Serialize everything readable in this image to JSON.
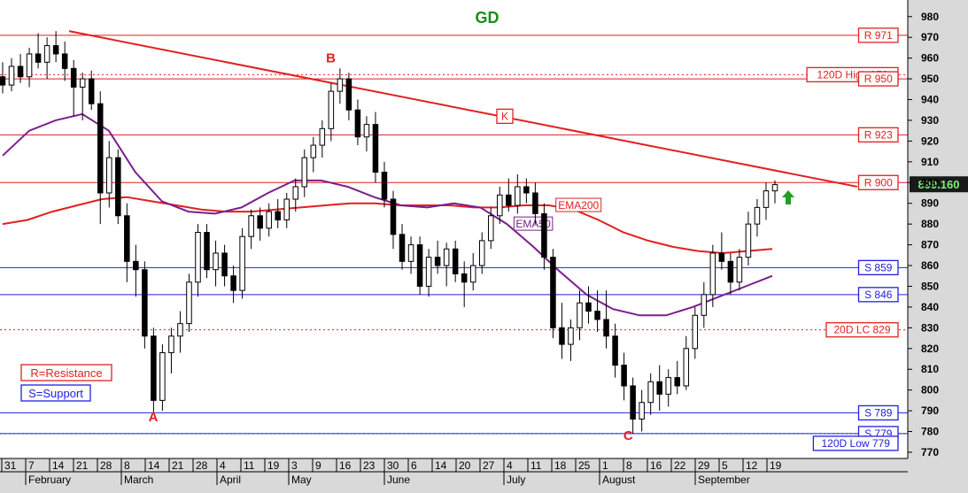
{
  "chart_data": {
    "type": "candlestick",
    "title": "GD",
    "ylim": [
      767,
      988
    ],
    "y_ticks": [
      980,
      970,
      960,
      950,
      940,
      930,
      920,
      910,
      900,
      890,
      880,
      870,
      860,
      850,
      840,
      830,
      820,
      810,
      800,
      790,
      780,
      770
    ],
    "day_ticks": [
      "31",
      "7",
      "14",
      "21",
      "28",
      "8",
      "14",
      "21",
      "28",
      "4",
      "11",
      "19",
      "3",
      "9",
      "16",
      "23",
      "30",
      "6",
      "14",
      "20",
      "27",
      "4",
      "11",
      "18",
      "25",
      "1",
      "8",
      "16",
      "22",
      "29",
      "5",
      "12",
      "19"
    ],
    "month_ticks": [
      "February",
      "March",
      "April",
      "May",
      "June",
      "July",
      "August",
      "September"
    ],
    "last_price": "899.160",
    "horizontal_levels": [
      {
        "value": 971,
        "label": "R 971",
        "kind": "resistance"
      },
      {
        "value": 952,
        "label": "120D High 952",
        "kind": "resistance"
      },
      {
        "value": 950,
        "label": "R 950",
        "kind": "resistance"
      },
      {
        "value": 923,
        "label": "R 923",
        "kind": "resistance"
      },
      {
        "value": 900,
        "label": "R 900",
        "kind": "resistance"
      },
      {
        "value": 859,
        "label": "S 859",
        "kind": "support"
      },
      {
        "value": 846,
        "label": "S 846",
        "kind": "support"
      },
      {
        "value": 829,
        "label": "20D LC 829",
        "kind": "resistance"
      },
      {
        "value": 789,
        "label": "S 789",
        "kind": "support"
      },
      {
        "value": 779,
        "label": "S 779",
        "kind": "support"
      },
      {
        "value": 779,
        "label": "120D Low 779",
        "kind": "support"
      }
    ],
    "trendline": {
      "label": "K",
      "start": [
        0.0,
        973
      ],
      "end": [
        1.0,
        898
      ]
    },
    "series": [
      {
        "name": "EMA200",
        "kind": "ema200",
        "values": [
          880,
          882,
          886,
          889,
          892,
          893,
          891,
          889,
          887,
          886,
          886,
          887,
          888,
          889,
          890,
          890,
          889,
          889,
          889,
          888,
          888,
          889,
          889,
          887,
          882,
          876,
          872,
          869,
          867,
          866,
          867,
          868
        ]
      },
      {
        "name": "EMA50",
        "kind": "ema50",
        "values": [
          913,
          925,
          930,
          933,
          925,
          905,
          891,
          886,
          885,
          888,
          895,
          901,
          901,
          898,
          893,
          889,
          888,
          890,
          888,
          880,
          869,
          857,
          846,
          839,
          836,
          836,
          840,
          845,
          850,
          855
        ]
      }
    ],
    "candles": [
      [
        951,
        958,
        943,
        947
      ],
      [
        947,
        960,
        944,
        956
      ],
      [
        956,
        962,
        948,
        951
      ],
      [
        951,
        965,
        946,
        962
      ],
      [
        962,
        972,
        955,
        958
      ],
      [
        958,
        970,
        950,
        966
      ],
      [
        966,
        973,
        958,
        962
      ],
      [
        962,
        968,
        949,
        955
      ],
      [
        955,
        959,
        932,
        946
      ],
      [
        946,
        953,
        930,
        950
      ],
      [
        950,
        954,
        935,
        938
      ],
      [
        938,
        944,
        880,
        895
      ],
      [
        895,
        920,
        888,
        912
      ],
      [
        912,
        916,
        880,
        884
      ],
      [
        884,
        890,
        852,
        862
      ],
      [
        862,
        870,
        845,
        858
      ],
      [
        858,
        862,
        820,
        826
      ],
      [
        826,
        830,
        789,
        795
      ],
      [
        795,
        822,
        790,
        818
      ],
      [
        818,
        830,
        808,
        826
      ],
      [
        826,
        838,
        818,
        832
      ],
      [
        832,
        856,
        828,
        852
      ],
      [
        852,
        880,
        845,
        876
      ],
      [
        876,
        880,
        854,
        858
      ],
      [
        858,
        872,
        850,
        866
      ],
      [
        866,
        870,
        850,
        855
      ],
      [
        855,
        860,
        842,
        848
      ],
      [
        848,
        878,
        844,
        874
      ],
      [
        874,
        887,
        868,
        884
      ],
      [
        884,
        888,
        872,
        878
      ],
      [
        878,
        890,
        874,
        886
      ],
      [
        886,
        892,
        878,
        882
      ],
      [
        882,
        895,
        878,
        892
      ],
      [
        892,
        902,
        886,
        898
      ],
      [
        898,
        916,
        893,
        912
      ],
      [
        912,
        922,
        905,
        918
      ],
      [
        918,
        930,
        912,
        926
      ],
      [
        926,
        948,
        920,
        944
      ],
      [
        944,
        955,
        938,
        950
      ],
      [
        950,
        953,
        930,
        935
      ],
      [
        935,
        940,
        918,
        922
      ],
      [
        922,
        932,
        915,
        928
      ],
      [
        928,
        934,
        900,
        905
      ],
      [
        905,
        910,
        888,
        892
      ],
      [
        892,
        896,
        868,
        875
      ],
      [
        875,
        880,
        858,
        862
      ],
      [
        862,
        874,
        856,
        870
      ],
      [
        870,
        874,
        846,
        850
      ],
      [
        850,
        868,
        845,
        864
      ],
      [
        864,
        872,
        856,
        860
      ],
      [
        860,
        871,
        850,
        868
      ],
      [
        868,
        872,
        852,
        856
      ],
      [
        856,
        862,
        840,
        852
      ],
      [
        852,
        866,
        848,
        860
      ],
      [
        860,
        876,
        856,
        872
      ],
      [
        872,
        888,
        868,
        884
      ],
      [
        884,
        898,
        880,
        894
      ],
      [
        894,
        902,
        886,
        889
      ],
      [
        889,
        904,
        885,
        898
      ],
      [
        898,
        902,
        890,
        895
      ],
      [
        895,
        900,
        880,
        885
      ],
      [
        885,
        890,
        858,
        864
      ],
      [
        864,
        868,
        825,
        830
      ],
      [
        830,
        842,
        815,
        822
      ],
      [
        822,
        834,
        814,
        830
      ],
      [
        830,
        848,
        824,
        842
      ],
      [
        842,
        850,
        832,
        838
      ],
      [
        838,
        848,
        828,
        834
      ],
      [
        834,
        848,
        820,
        826
      ],
      [
        826,
        832,
        806,
        812
      ],
      [
        812,
        818,
        795,
        802
      ],
      [
        802,
        806,
        779,
        786
      ],
      [
        786,
        800,
        780,
        794
      ],
      [
        794,
        808,
        788,
        804
      ],
      [
        804,
        812,
        790,
        798
      ],
      [
        798,
        810,
        792,
        806
      ],
      [
        806,
        814,
        798,
        802
      ],
      [
        802,
        826,
        800,
        820
      ],
      [
        820,
        840,
        815,
        836
      ],
      [
        836,
        852,
        830,
        846
      ],
      [
        846,
        870,
        840,
        866
      ],
      [
        866,
        876,
        858,
        862
      ],
      [
        862,
        866,
        846,
        852
      ],
      [
        852,
        868,
        848,
        864
      ],
      [
        864,
        886,
        860,
        880
      ],
      [
        880,
        892,
        874,
        888
      ],
      [
        888,
        900,
        882,
        896
      ],
      [
        896,
        901,
        890,
        899
      ]
    ],
    "annotations": [
      {
        "text": "A",
        "x_frac": 0.195,
        "value": 785
      },
      {
        "text": "B",
        "x_frac": 0.425,
        "value": 958
      },
      {
        "text": "C",
        "x_frac": 0.81,
        "value": 776
      }
    ],
    "legend": [
      "R=Resistance",
      "S=Support"
    ],
    "arrow": "up"
  }
}
